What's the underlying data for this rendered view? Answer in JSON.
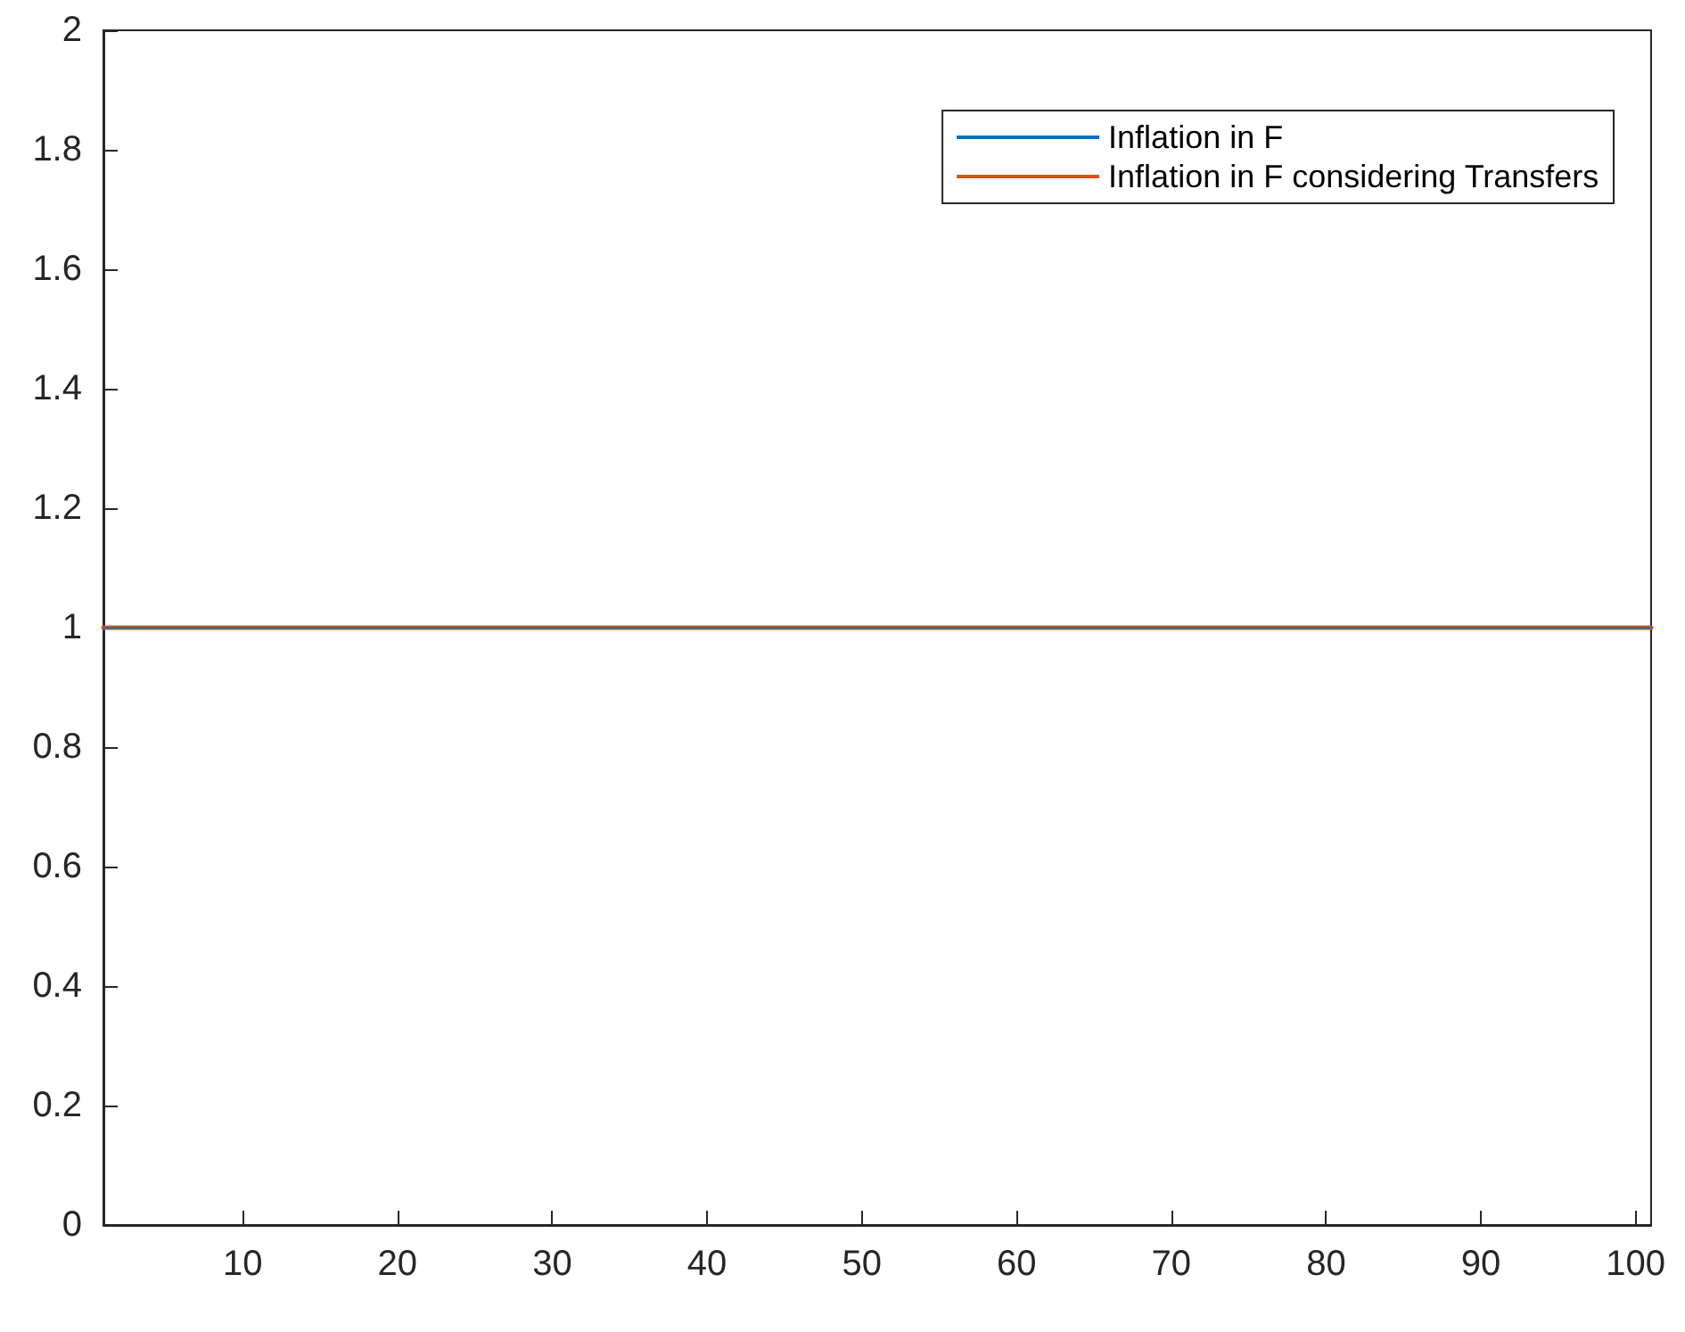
{
  "chart_data": {
    "type": "line",
    "x": [
      1,
      101
    ],
    "series": [
      {
        "name": "Inflation in F",
        "color": "#0072bd",
        "values": [
          1,
          1
        ]
      },
      {
        "name": "Inflation in F considering Transfers",
        "color": "#d95319",
        "values": [
          1,
          1
        ]
      }
    ],
    "xlim": [
      1,
      101
    ],
    "xticks": [
      10,
      20,
      30,
      40,
      50,
      60,
      70,
      80,
      90,
      100
    ],
    "ylim": [
      0,
      2
    ],
    "yticks": [
      0,
      0.2,
      0.4,
      0.6,
      0.8,
      1,
      1.2,
      1.4,
      1.6,
      1.8,
      2
    ],
    "grid": false,
    "legend": "top right",
    "marker": "none",
    "line_style": "solid"
  }
}
